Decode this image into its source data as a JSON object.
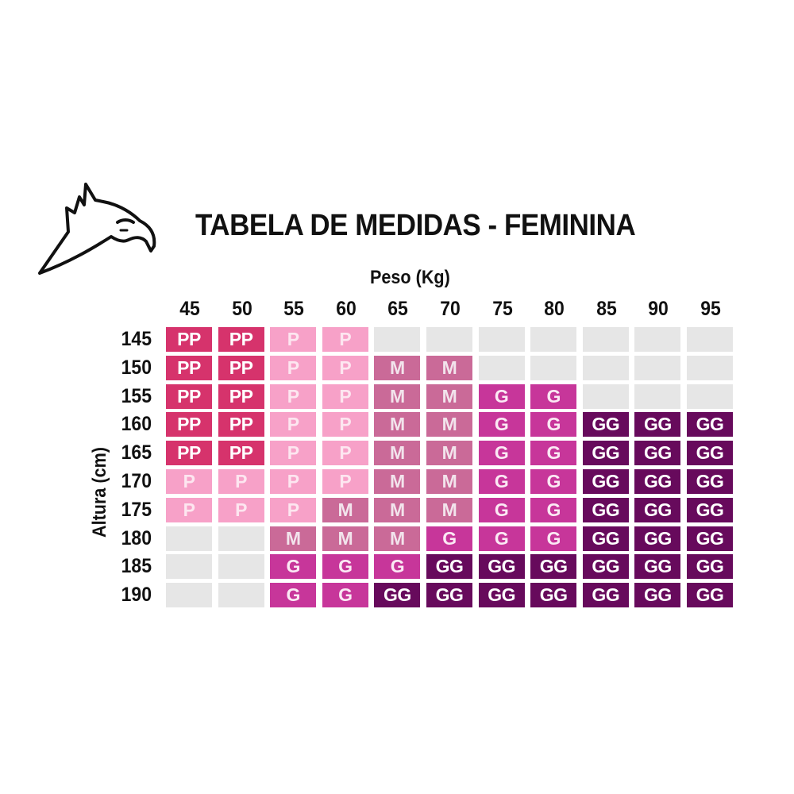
{
  "title": "TABELA DE MEDIDAS - FEMININA",
  "logo_icon": "eagle-head-icon",
  "colors": {
    "PP": {
      "bg": "#d6336c",
      "fg": "#ffffff"
    },
    "P": {
      "bg": "#f7a1c8",
      "fg": "#fde6f0"
    },
    "M": {
      "bg": "#ca6a98",
      "fg": "#f2e4ec"
    },
    "G": {
      "bg": "#c7369a",
      "fg": "#fbe9f4"
    },
    "GG": {
      "bg": "#670a5c",
      "fg": "#ffffff"
    },
    "empty": {
      "bg": "#e6e6e6"
    }
  },
  "chart_data": {
    "type": "table",
    "title": "TABELA DE MEDIDAS - FEMININA",
    "xlabel": "Peso (Kg)",
    "ylabel": "Altura (cm)",
    "x": [
      "45",
      "50",
      "55",
      "60",
      "65",
      "70",
      "75",
      "80",
      "85",
      "90",
      "95"
    ],
    "y": [
      "145",
      "150",
      "155",
      "160",
      "165",
      "170",
      "175",
      "180",
      "185",
      "190"
    ],
    "cells": [
      [
        "PP",
        "PP",
        "P",
        "P",
        "",
        "",
        "",
        "",
        "",
        "",
        ""
      ],
      [
        "PP",
        "PP",
        "P",
        "P",
        "M",
        "M",
        "",
        "",
        "",
        "",
        ""
      ],
      [
        "PP",
        "PP",
        "P",
        "P",
        "M",
        "M",
        "G",
        "G",
        "",
        "",
        ""
      ],
      [
        "PP",
        "PP",
        "P",
        "P",
        "M",
        "M",
        "G",
        "G",
        "GG",
        "GG",
        "GG"
      ],
      [
        "PP",
        "PP",
        "P",
        "P",
        "M",
        "M",
        "G",
        "G",
        "GG",
        "GG",
        "GG"
      ],
      [
        "P",
        "P",
        "P",
        "P",
        "M",
        "M",
        "G",
        "G",
        "GG",
        "GG",
        "GG"
      ],
      [
        "P",
        "P",
        "P",
        "M",
        "M",
        "M",
        "G",
        "G",
        "GG",
        "GG",
        "GG"
      ],
      [
        "",
        "",
        "M",
        "M",
        "M",
        "G",
        "G",
        "G",
        "GG",
        "GG",
        "GG"
      ],
      [
        "",
        "",
        "G",
        "G",
        "G",
        "GG",
        "GG",
        "GG",
        "GG",
        "GG",
        "GG"
      ],
      [
        "",
        "",
        "G",
        "G",
        "GG",
        "GG",
        "GG",
        "GG",
        "GG",
        "GG",
        "GG"
      ]
    ]
  }
}
